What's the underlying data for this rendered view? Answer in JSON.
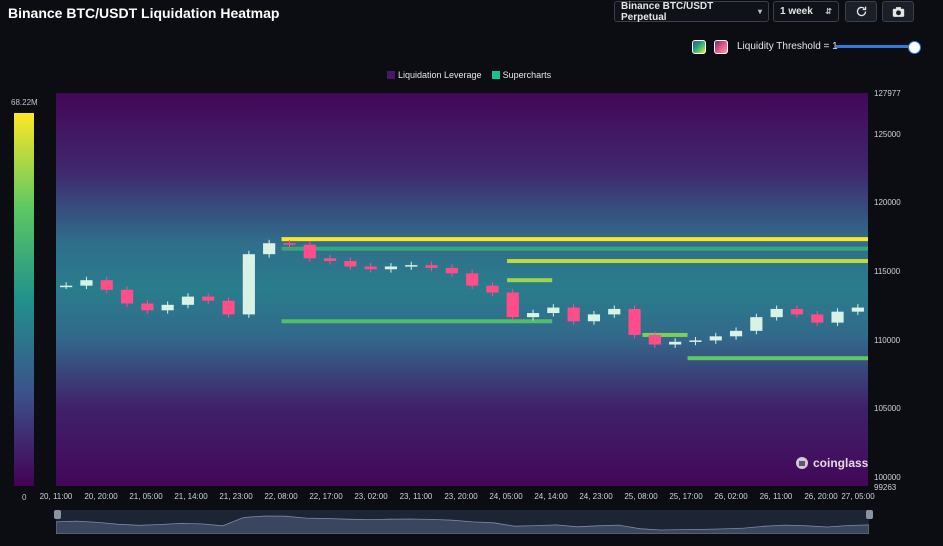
{
  "header": {
    "title": "Binance BTC/USDT Liquidation Heatmap",
    "symbol_select": "Binance BTC/USDT Perpetual",
    "range_select": "1 week",
    "refresh_icon": "refresh-icon",
    "camera_icon": "camera-icon"
  },
  "threshold": {
    "label": "Liquidity Threshold = 1",
    "value": 1,
    "swatch_colors": [
      "#21918c",
      "#e0578a"
    ]
  },
  "legend": {
    "items": [
      {
        "label": "Liquidation Leverage",
        "color": "#440154"
      },
      {
        "label": "Supercharts",
        "color": "#10c889"
      }
    ]
  },
  "colorscale": {
    "max_label": "68.22M",
    "min_label": "0"
  },
  "watermark": {
    "text": "coinglass"
  },
  "chart_data": {
    "type": "heatmap",
    "title": "Binance BTC/USDT Liquidation Heatmap",
    "y_axis": {
      "range": [
        99263,
        127977
      ],
      "ticks": [
        "127977",
        "125000",
        "120000",
        "115000",
        "110000",
        "105000",
        "100000",
        "99263"
      ]
    },
    "x_axis": {
      "ticks": [
        "20, 11:00",
        "20, 20:00",
        "21, 05:00",
        "21, 14:00",
        "21, 23:00",
        "22, 08:00",
        "22, 17:00",
        "23, 02:00",
        "23, 11:00",
        "23, 20:00",
        "24, 05:00",
        "24, 14:00",
        "24, 23:00",
        "25, 08:00",
        "25, 17:00",
        "26, 02:00",
        "26, 11:00",
        "26, 20:00",
        "27, 05:00"
      ]
    },
    "colorscale": {
      "min": 0,
      "max_label": "68.22M",
      "colors": [
        "#440154",
        "#3b528b",
        "#21918c",
        "#5ec962",
        "#fde725"
      ]
    },
    "liquidity_bands": [
      {
        "price": 117300,
        "from_tick": 5,
        "to_tick": 18,
        "intensity": 1.0
      },
      {
        "price": 116600,
        "from_tick": 5,
        "to_tick": 18,
        "intensity": 0.6
      },
      {
        "price": 115700,
        "from_tick": 10,
        "to_tick": 18,
        "intensity": 0.9
      },
      {
        "price": 114300,
        "from_tick": 10,
        "to_tick": 11,
        "intensity": 0.85
      },
      {
        "price": 111300,
        "from_tick": 5,
        "to_tick": 11,
        "intensity": 0.7
      },
      {
        "price": 110300,
        "from_tick": 13,
        "to_tick": 14,
        "intensity": 0.8
      },
      {
        "price": 108600,
        "from_tick": 14,
        "to_tick": 18,
        "intensity": 0.75
      }
    ],
    "price_series": {
      "name": "BTC/USDT",
      "close": [
        113900,
        114300,
        113600,
        112600,
        112100,
        112500,
        113100,
        112800,
        111800,
        116200,
        117000,
        116900,
        115900,
        115700,
        115300,
        115100,
        115300,
        115400,
        115200,
        114800,
        113900,
        113400,
        111600,
        111900,
        112300,
        111300,
        111800,
        112200,
        110300,
        109600,
        109800,
        109900,
        110200,
        110600,
        111600,
        112200,
        111800,
        111200,
        112000,
        112300
      ]
    }
  }
}
